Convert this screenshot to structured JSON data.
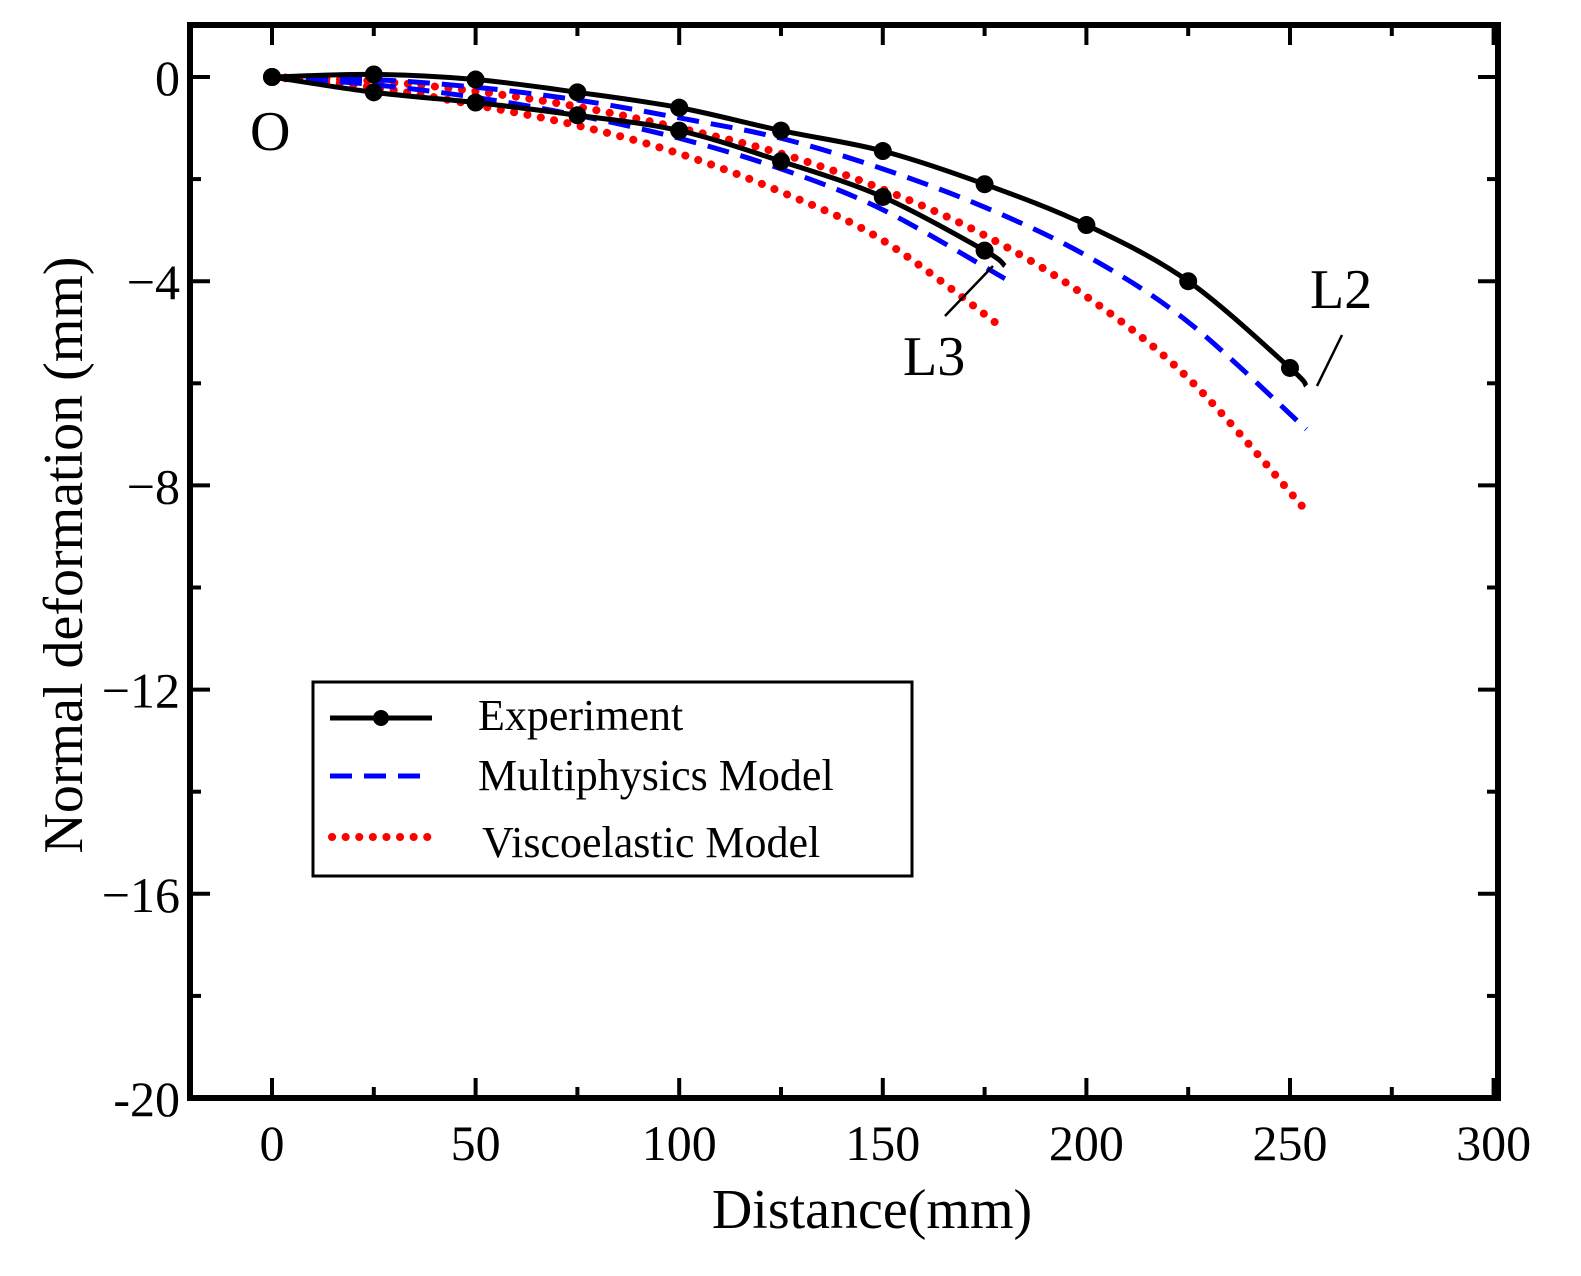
{
  "chart_data": {
    "type": "line",
    "xlabel": "Distance(mm)",
    "ylabel": "Normal deformation (mm)",
    "xlim": [
      -20,
      300
    ],
    "ylim": [
      -20,
      1
    ],
    "xticks": [
      0,
      50,
      100,
      150,
      200,
      250,
      300
    ],
    "xtick_labels": [
      "0",
      "50",
      "100",
      "150",
      "200",
      "250",
      "300"
    ],
    "yticks": [
      0,
      -4,
      -8,
      -12,
      -16,
      -20
    ],
    "ytick_labels": [
      "0",
      "−4",
      "−8",
      "−12",
      "−16",
      "-20"
    ],
    "grid": false,
    "legend_position": "center-left",
    "legend": [
      {
        "label": "Experiment",
        "style": "solid-marker",
        "color": "#000000"
      },
      {
        "label": "Multiphysics Model",
        "style": "dashed",
        "color": "#0000ff"
      },
      {
        "label": "Viscoelastic Model",
        "style": "dotted",
        "color": "#ff0000"
      }
    ],
    "annotations": [
      {
        "text": "O",
        "x": 0,
        "y": 0
      },
      {
        "text": "L2",
        "x": 255,
        "y": -6.0
      },
      {
        "text": "L3",
        "x": 178,
        "y": -3.8
      }
    ],
    "series": [
      {
        "line": "L2",
        "model": "Experiment",
        "style": "solid-marker",
        "color": "#000000",
        "x": [
          0,
          25,
          50,
          75,
          100,
          125,
          150,
          175,
          200,
          225,
          250,
          254
        ],
        "y": [
          0,
          0.05,
          -0.05,
          -0.3,
          -0.6,
          -1.05,
          -1.45,
          -2.1,
          -2.9,
          -4.0,
          -5.7,
          -6.05
        ],
        "markers": [
          true,
          true,
          true,
          true,
          true,
          true,
          true,
          true,
          true,
          true,
          true,
          false
        ]
      },
      {
        "line": "L2",
        "model": "Multiphysics Model",
        "style": "dashed",
        "color": "#0000ff",
        "x": [
          0,
          25,
          50,
          75,
          100,
          125,
          150,
          175,
          200,
          225,
          254
        ],
        "y": [
          0,
          -0.05,
          -0.2,
          -0.45,
          -0.8,
          -1.2,
          -1.8,
          -2.55,
          -3.5,
          -4.8,
          -6.9
        ]
      },
      {
        "line": "L2",
        "model": "Viscoelastic Model",
        "style": "dotted",
        "color": "#ff0000",
        "x": [
          0,
          25,
          50,
          75,
          100,
          125,
          150,
          175,
          200,
          225,
          254
        ],
        "y": [
          0,
          -0.08,
          -0.28,
          -0.58,
          -1.0,
          -1.5,
          -2.2,
          -3.1,
          -4.3,
          -5.9,
          -8.5
        ]
      },
      {
        "line": "L3",
        "model": "Experiment",
        "style": "solid-marker",
        "color": "#000000",
        "x": [
          0,
          25,
          50,
          75,
          100,
          125,
          150,
          175,
          180
        ],
        "y": [
          0,
          -0.3,
          -0.5,
          -0.75,
          -1.05,
          -1.65,
          -2.35,
          -3.4,
          -3.7
        ],
        "markers": [
          true,
          true,
          true,
          true,
          true,
          true,
          true,
          true,
          false
        ]
      },
      {
        "line": "L3",
        "model": "Multiphysics Model",
        "style": "dashed",
        "color": "#0000ff",
        "x": [
          0,
          25,
          50,
          75,
          100,
          125,
          150,
          180
        ],
        "y": [
          0,
          -0.15,
          -0.4,
          -0.75,
          -1.2,
          -1.8,
          -2.6,
          -3.95
        ]
      },
      {
        "line": "L3",
        "model": "Viscoelastic Model",
        "style": "dotted",
        "color": "#ff0000",
        "x": [
          0,
          25,
          50,
          75,
          100,
          125,
          150,
          180
        ],
        "y": [
          0,
          -0.2,
          -0.55,
          -0.95,
          -1.5,
          -2.25,
          -3.2,
          -4.95
        ]
      }
    ]
  }
}
